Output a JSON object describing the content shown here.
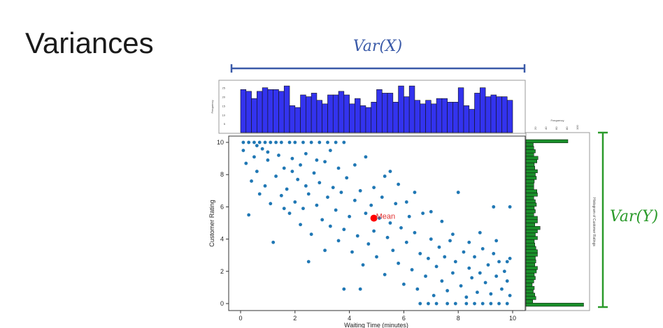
{
  "slide": {
    "title": "Variances",
    "var_x_label": "Var(X)",
    "var_y_label": "Var(Y)"
  },
  "colors": {
    "scatter": "#1f77b4",
    "mean": "#ff0000",
    "hist_x": "#3333ee",
    "hist_y": "#1a8f2a",
    "var_x": "#3a5aa8",
    "var_y": "#2a9a2a"
  },
  "chart_data": [
    {
      "type": "scatter",
      "xlabel": "Waiting Time (minutes)",
      "ylabel": "Customer Rating",
      "xlim": [
        0,
        10
      ],
      "ylim": [
        0,
        10
      ],
      "xticks": [
        0,
        2,
        4,
        6,
        8,
        10
      ],
      "yticks": [
        0,
        2,
        4,
        6,
        8,
        10
      ],
      "mean_label": "Mean",
      "mean": [
        4.9,
        5.3
      ],
      "points": [
        [
          0.1,
          10
        ],
        [
          0.3,
          10
        ],
        [
          0.5,
          10
        ],
        [
          0.7,
          10
        ],
        [
          0.9,
          10
        ],
        [
          1.1,
          10
        ],
        [
          1.3,
          10
        ],
        [
          1.5,
          10
        ],
        [
          1.8,
          10
        ],
        [
          2.0,
          10
        ],
        [
          2.3,
          10
        ],
        [
          2.6,
          10
        ],
        [
          2.9,
          10
        ],
        [
          3.2,
          10
        ],
        [
          3.5,
          10
        ],
        [
          3.8,
          10
        ],
        [
          6.6,
          0
        ],
        [
          6.9,
          0
        ],
        [
          7.2,
          0
        ],
        [
          7.6,
          0
        ],
        [
          7.9,
          0
        ],
        [
          8.3,
          0
        ],
        [
          8.6,
          0
        ],
        [
          8.9,
          0
        ],
        [
          9.2,
          0
        ],
        [
          9.5,
          0
        ],
        [
          9.8,
          0
        ],
        [
          0.1,
          9.5
        ],
        [
          0.2,
          8.7
        ],
        [
          0.4,
          7.6
        ],
        [
          0.3,
          5.5
        ],
        [
          0.5,
          9.1
        ],
        [
          0.6,
          8.2
        ],
        [
          0.7,
          6.8
        ],
        [
          0.8,
          9.6
        ],
        [
          0.9,
          7.3
        ],
        [
          1.0,
          8.9
        ],
        [
          1.1,
          6.2
        ],
        [
          1.2,
          3.8
        ],
        [
          1.3,
          7.9
        ],
        [
          1.4,
          9.2
        ],
        [
          1.5,
          6.7
        ],
        [
          1.6,
          8.4
        ],
        [
          1.7,
          7.1
        ],
        [
          1.8,
          5.6
        ],
        [
          1.9,
          9.0
        ],
        [
          2.0,
          6.3
        ],
        [
          2.1,
          7.7
        ],
        [
          2.2,
          8.6
        ],
        [
          2.3,
          5.9
        ],
        [
          2.4,
          7.3
        ],
        [
          2.5,
          6.8
        ],
        [
          2.6,
          4.3
        ],
        [
          2.7,
          8.1
        ],
        [
          2.8,
          6.1
        ],
        [
          2.9,
          7.5
        ],
        [
          3.0,
          5.2
        ],
        [
          3.1,
          8.8
        ],
        [
          3.2,
          6.6
        ],
        [
          3.3,
          4.8
        ],
        [
          3.4,
          7.2
        ],
        [
          3.5,
          5.8
        ],
        [
          3.6,
          3.9
        ],
        [
          3.7,
          6.9
        ],
        [
          3.8,
          4.6
        ],
        [
          3.9,
          7.8
        ],
        [
          4.0,
          5.4
        ],
        [
          4.1,
          3.2
        ],
        [
          4.2,
          6.4
        ],
        [
          4.3,
          4.2
        ],
        [
          4.4,
          7.0
        ],
        [
          4.5,
          2.4
        ],
        [
          4.6,
          5.6
        ],
        [
          4.7,
          3.7
        ],
        [
          4.8,
          6.1
        ],
        [
          4.9,
          4.5
        ],
        [
          5.0,
          2.9
        ],
        [
          5.1,
          5.3
        ],
        [
          5.2,
          6.6
        ],
        [
          5.3,
          1.8
        ],
        [
          5.4,
          4.1
        ],
        [
          5.5,
          5.0
        ],
        [
          5.6,
          3.3
        ],
        [
          5.7,
          6.2
        ],
        [
          5.8,
          2.5
        ],
        [
          5.9,
          4.7
        ],
        [
          6.0,
          1.2
        ],
        [
          6.1,
          3.8
        ],
        [
          6.2,
          5.4
        ],
        [
          6.3,
          2.1
        ],
        [
          6.4,
          4.4
        ],
        [
          6.5,
          0.9
        ],
        [
          6.6,
          3.1
        ],
        [
          6.7,
          5.6
        ],
        [
          6.8,
          1.7
        ],
        [
          6.9,
          2.8
        ],
        [
          7.0,
          4.0
        ],
        [
          7.1,
          0.5
        ],
        [
          7.2,
          2.3
        ],
        [
          7.3,
          3.5
        ],
        [
          7.4,
          1.4
        ],
        [
          7.5,
          2.9
        ],
        [
          7.6,
          0.8
        ],
        [
          7.7,
          3.9
        ],
        [
          7.8,
          1.9
        ],
        [
          7.9,
          2.6
        ],
        [
          8.0,
          6.9
        ],
        [
          8.1,
          1.1
        ],
        [
          8.2,
          3.2
        ],
        [
          8.3,
          0.4
        ],
        [
          8.4,
          2.2
        ],
        [
          8.5,
          1.6
        ],
        [
          8.6,
          2.9
        ],
        [
          8.7,
          0.7
        ],
        [
          8.8,
          1.9
        ],
        [
          8.9,
          3.4
        ],
        [
          9.0,
          1.3
        ],
        [
          9.1,
          2.4
        ],
        [
          9.2,
          0.6
        ],
        [
          9.3,
          3.1
        ],
        [
          9.4,
          1.7
        ],
        [
          9.5,
          2.6
        ],
        [
          9.6,
          0.9
        ],
        [
          9.7,
          2.0
        ],
        [
          9.8,
          1.4
        ],
        [
          9.9,
          2.8
        ],
        [
          9.9,
          0.5
        ],
        [
          2.5,
          2.6
        ],
        [
          3.8,
          0.9
        ],
        [
          4.4,
          0.9
        ],
        [
          9.3,
          6.0
        ],
        [
          9.9,
          6.0
        ],
        [
          0.6,
          9.8
        ],
        [
          1.0,
          9.4
        ],
        [
          1.9,
          8.2
        ],
        [
          2.4,
          9.3
        ],
        [
          2.8,
          8.9
        ],
        [
          3.3,
          9.5
        ],
        [
          3.6,
          8.4
        ],
        [
          4.2,
          8.6
        ],
        [
          4.6,
          9.1
        ],
        [
          5.3,
          7.9
        ],
        [
          5.8,
          7.4
        ],
        [
          6.4,
          6.9
        ],
        [
          7.0,
          5.7
        ],
        [
          7.4,
          5.1
        ],
        [
          7.8,
          4.3
        ],
        [
          8.4,
          3.8
        ],
        [
          8.8,
          4.4
        ],
        [
          9.4,
          3.9
        ],
        [
          9.8,
          2.6
        ],
        [
          6.1,
          6.3
        ],
        [
          5.5,
          8.2
        ],
        [
          4.9,
          7.2
        ],
        [
          3.1,
          3.3
        ],
        [
          2.2,
          4.9
        ],
        [
          1.6,
          5.9
        ]
      ]
    },
    {
      "type": "bar",
      "title": "",
      "ylabel": "Frequency",
      "xlim": [
        0,
        10
      ],
      "yticks": [
        5,
        10,
        15,
        20,
        25
      ],
      "bins": 50,
      "values": [
        24,
        23,
        19,
        23,
        25,
        24,
        24,
        23,
        26,
        15,
        14,
        21,
        20,
        22,
        18,
        16,
        21,
        21,
        23,
        21,
        16,
        19,
        15,
        14,
        17,
        24,
        22,
        22,
        17,
        26,
        20,
        26,
        18,
        16,
        18,
        16,
        19,
        19,
        17,
        17,
        25,
        15,
        13,
        22,
        25,
        20,
        21,
        20,
        20,
        18
      ]
    },
    {
      "type": "bar",
      "orientation": "horizontal",
      "title": "Histogram of Customer Ratings",
      "xlabel": "Frequency",
      "xticks": [
        20,
        40,
        60,
        80,
        100
      ],
      "ylim": [
        0,
        10
      ],
      "bins": 50,
      "values": [
        110,
        13,
        19,
        17,
        14,
        16,
        12,
        15,
        18,
        16,
        20,
        22,
        17,
        19,
        18,
        22,
        22,
        19,
        17,
        16,
        22,
        18,
        22,
        27,
        17,
        22,
        22,
        15,
        18,
        16,
        20,
        18,
        15,
        22,
        21,
        15,
        15,
        16,
        20,
        18,
        22,
        17,
        16,
        21,
        23,
        15,
        18,
        15,
        14,
        80
      ]
    }
  ]
}
